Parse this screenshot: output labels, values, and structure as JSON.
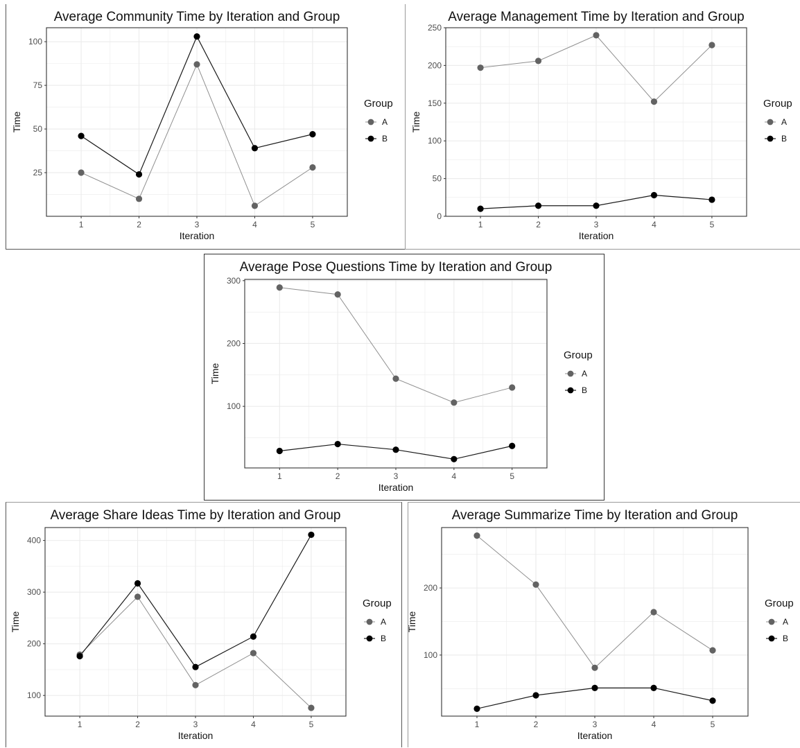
{
  "figure": {
    "legend_title": "Group",
    "legend_labels": [
      "A",
      "B"
    ],
    "colors": {
      "A": "#636363",
      "B": "#000000",
      "line_A": "#8f8f8f",
      "line_B": "#1a1a1a",
      "grid": "#ebebeb",
      "border": "#333333"
    }
  },
  "chart_data": [
    {
      "type": "line",
      "title": "Average Community Time by Iteration and Group",
      "xlabel": "Iteration",
      "ylabel": "Time",
      "x": [
        1,
        2,
        3,
        4,
        5
      ],
      "xlim": [
        0.4,
        5.6
      ],
      "ylim": [
        0,
        108
      ],
      "yticks": [
        25,
        50,
        75,
        100
      ],
      "grid": true,
      "legend_position": "right",
      "series": [
        {
          "name": "A",
          "values": [
            25,
            10,
            87,
            6,
            28
          ]
        },
        {
          "name": "B",
          "values": [
            46,
            24,
            103,
            39,
            47
          ]
        }
      ]
    },
    {
      "type": "line",
      "title": "Average Management Time by Iteration and Group",
      "xlabel": "Iteration",
      "ylabel": "Time",
      "x": [
        1,
        2,
        3,
        4,
        5
      ],
      "xlim": [
        0.4,
        5.6
      ],
      "ylim": [
        0,
        250
      ],
      "yticks": [
        0,
        50,
        100,
        150,
        200,
        250
      ],
      "grid": true,
      "legend_position": "right",
      "series": [
        {
          "name": "A",
          "values": [
            197,
            206,
            240,
            152,
            227
          ]
        },
        {
          "name": "B",
          "values": [
            10,
            14,
            14,
            28,
            22
          ]
        }
      ]
    },
    {
      "type": "line",
      "title": "Average Pose Questions Time by Iteration and Group",
      "xlabel": "Iteration",
      "ylabel": "Time",
      "x": [
        1,
        2,
        3,
        4,
        5
      ],
      "xlim": [
        0.4,
        5.6
      ],
      "ylim": [
        2,
        302
      ],
      "yticks": [
        100,
        200,
        300
      ],
      "grid": true,
      "legend_position": "right",
      "series": [
        {
          "name": "A",
          "values": [
            289,
            278,
            144,
            106,
            130
          ]
        },
        {
          "name": "B",
          "values": [
            29,
            40,
            31,
            16,
            37
          ]
        }
      ]
    },
    {
      "type": "line",
      "title": "Average Share Ideas Time by Iteration and Group",
      "xlabel": "Iteration",
      "ylabel": "Time",
      "x": [
        1,
        2,
        3,
        4,
        5
      ],
      "xlim": [
        0.4,
        5.6
      ],
      "ylim": [
        60,
        425
      ],
      "yticks": [
        100,
        200,
        300,
        400
      ],
      "grid": true,
      "legend_position": "right",
      "series": [
        {
          "name": "A",
          "values": [
            179,
            291,
            120,
            182,
            76
          ]
        },
        {
          "name": "B",
          "values": [
            176,
            317,
            155,
            214,
            411
          ]
        }
      ]
    },
    {
      "type": "line",
      "title": "Average Summarize Time by Iteration and Group",
      "xlabel": "Iteration",
      "ylabel": "Time",
      "x": [
        1,
        2,
        3,
        4,
        5
      ],
      "xlim": [
        0.4,
        5.6
      ],
      "ylim": [
        9,
        290
      ],
      "yticks": [
        100,
        200
      ],
      "grid": true,
      "legend_position": "right",
      "series": [
        {
          "name": "A",
          "values": [
            278,
            205,
            81,
            164,
            107
          ]
        },
        {
          "name": "B",
          "values": [
            20,
            40,
            51,
            51,
            32
          ]
        }
      ]
    }
  ]
}
